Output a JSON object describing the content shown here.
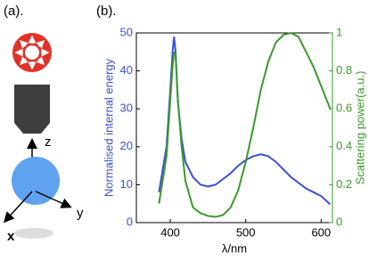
{
  "chart_data": {
    "type": "line",
    "panel_labels": [
      "(a).",
      "(b)."
    ],
    "diagram_axes": [
      "z",
      "y",
      "x"
    ],
    "xlabel": "λ/nm",
    "ylabel": "Normalised internal energy",
    "y2label": "Scattering power(a.u.)",
    "x": [
      385,
      395,
      400,
      403,
      405,
      407,
      410,
      415,
      420,
      430,
      440,
      450,
      460,
      470,
      480,
      490,
      500,
      510,
      520,
      530,
      540,
      550,
      560,
      570,
      580,
      590,
      600,
      612
    ],
    "series": [
      {
        "color": "#3c50d4",
        "values": [
          8,
          20,
          35,
          45,
          49,
          45,
          32,
          22,
          16,
          12,
          10,
          9.5,
          10,
          11.5,
          13,
          15,
          16.5,
          17.5,
          18,
          17.5,
          16,
          14,
          12,
          10.5,
          9,
          8,
          7,
          4.8
        ]
      },
      {
        "color": "#3a9a2a",
        "axis": "y2",
        "values": [
          0.1,
          0.35,
          0.65,
          0.82,
          0.9,
          0.88,
          0.65,
          0.4,
          0.22,
          0.08,
          0.05,
          0.035,
          0.03,
          0.04,
          0.08,
          0.17,
          0.32,
          0.5,
          0.7,
          0.85,
          0.95,
          0.99,
          1.0,
          0.98,
          0.9,
          0.82,
          0.72,
          0.6
        ]
      }
    ],
    "xlim": [
      355,
      615
    ],
    "xticks": [
      400,
      500,
      600
    ],
    "ylim": [
      0,
      50
    ],
    "yticks": [
      0,
      10,
      20,
      30,
      40,
      50
    ],
    "y2lim": [
      0,
      1
    ],
    "y2ticks": [
      0,
      0.2,
      0.4,
      0.6,
      0.8,
      1
    ]
  }
}
